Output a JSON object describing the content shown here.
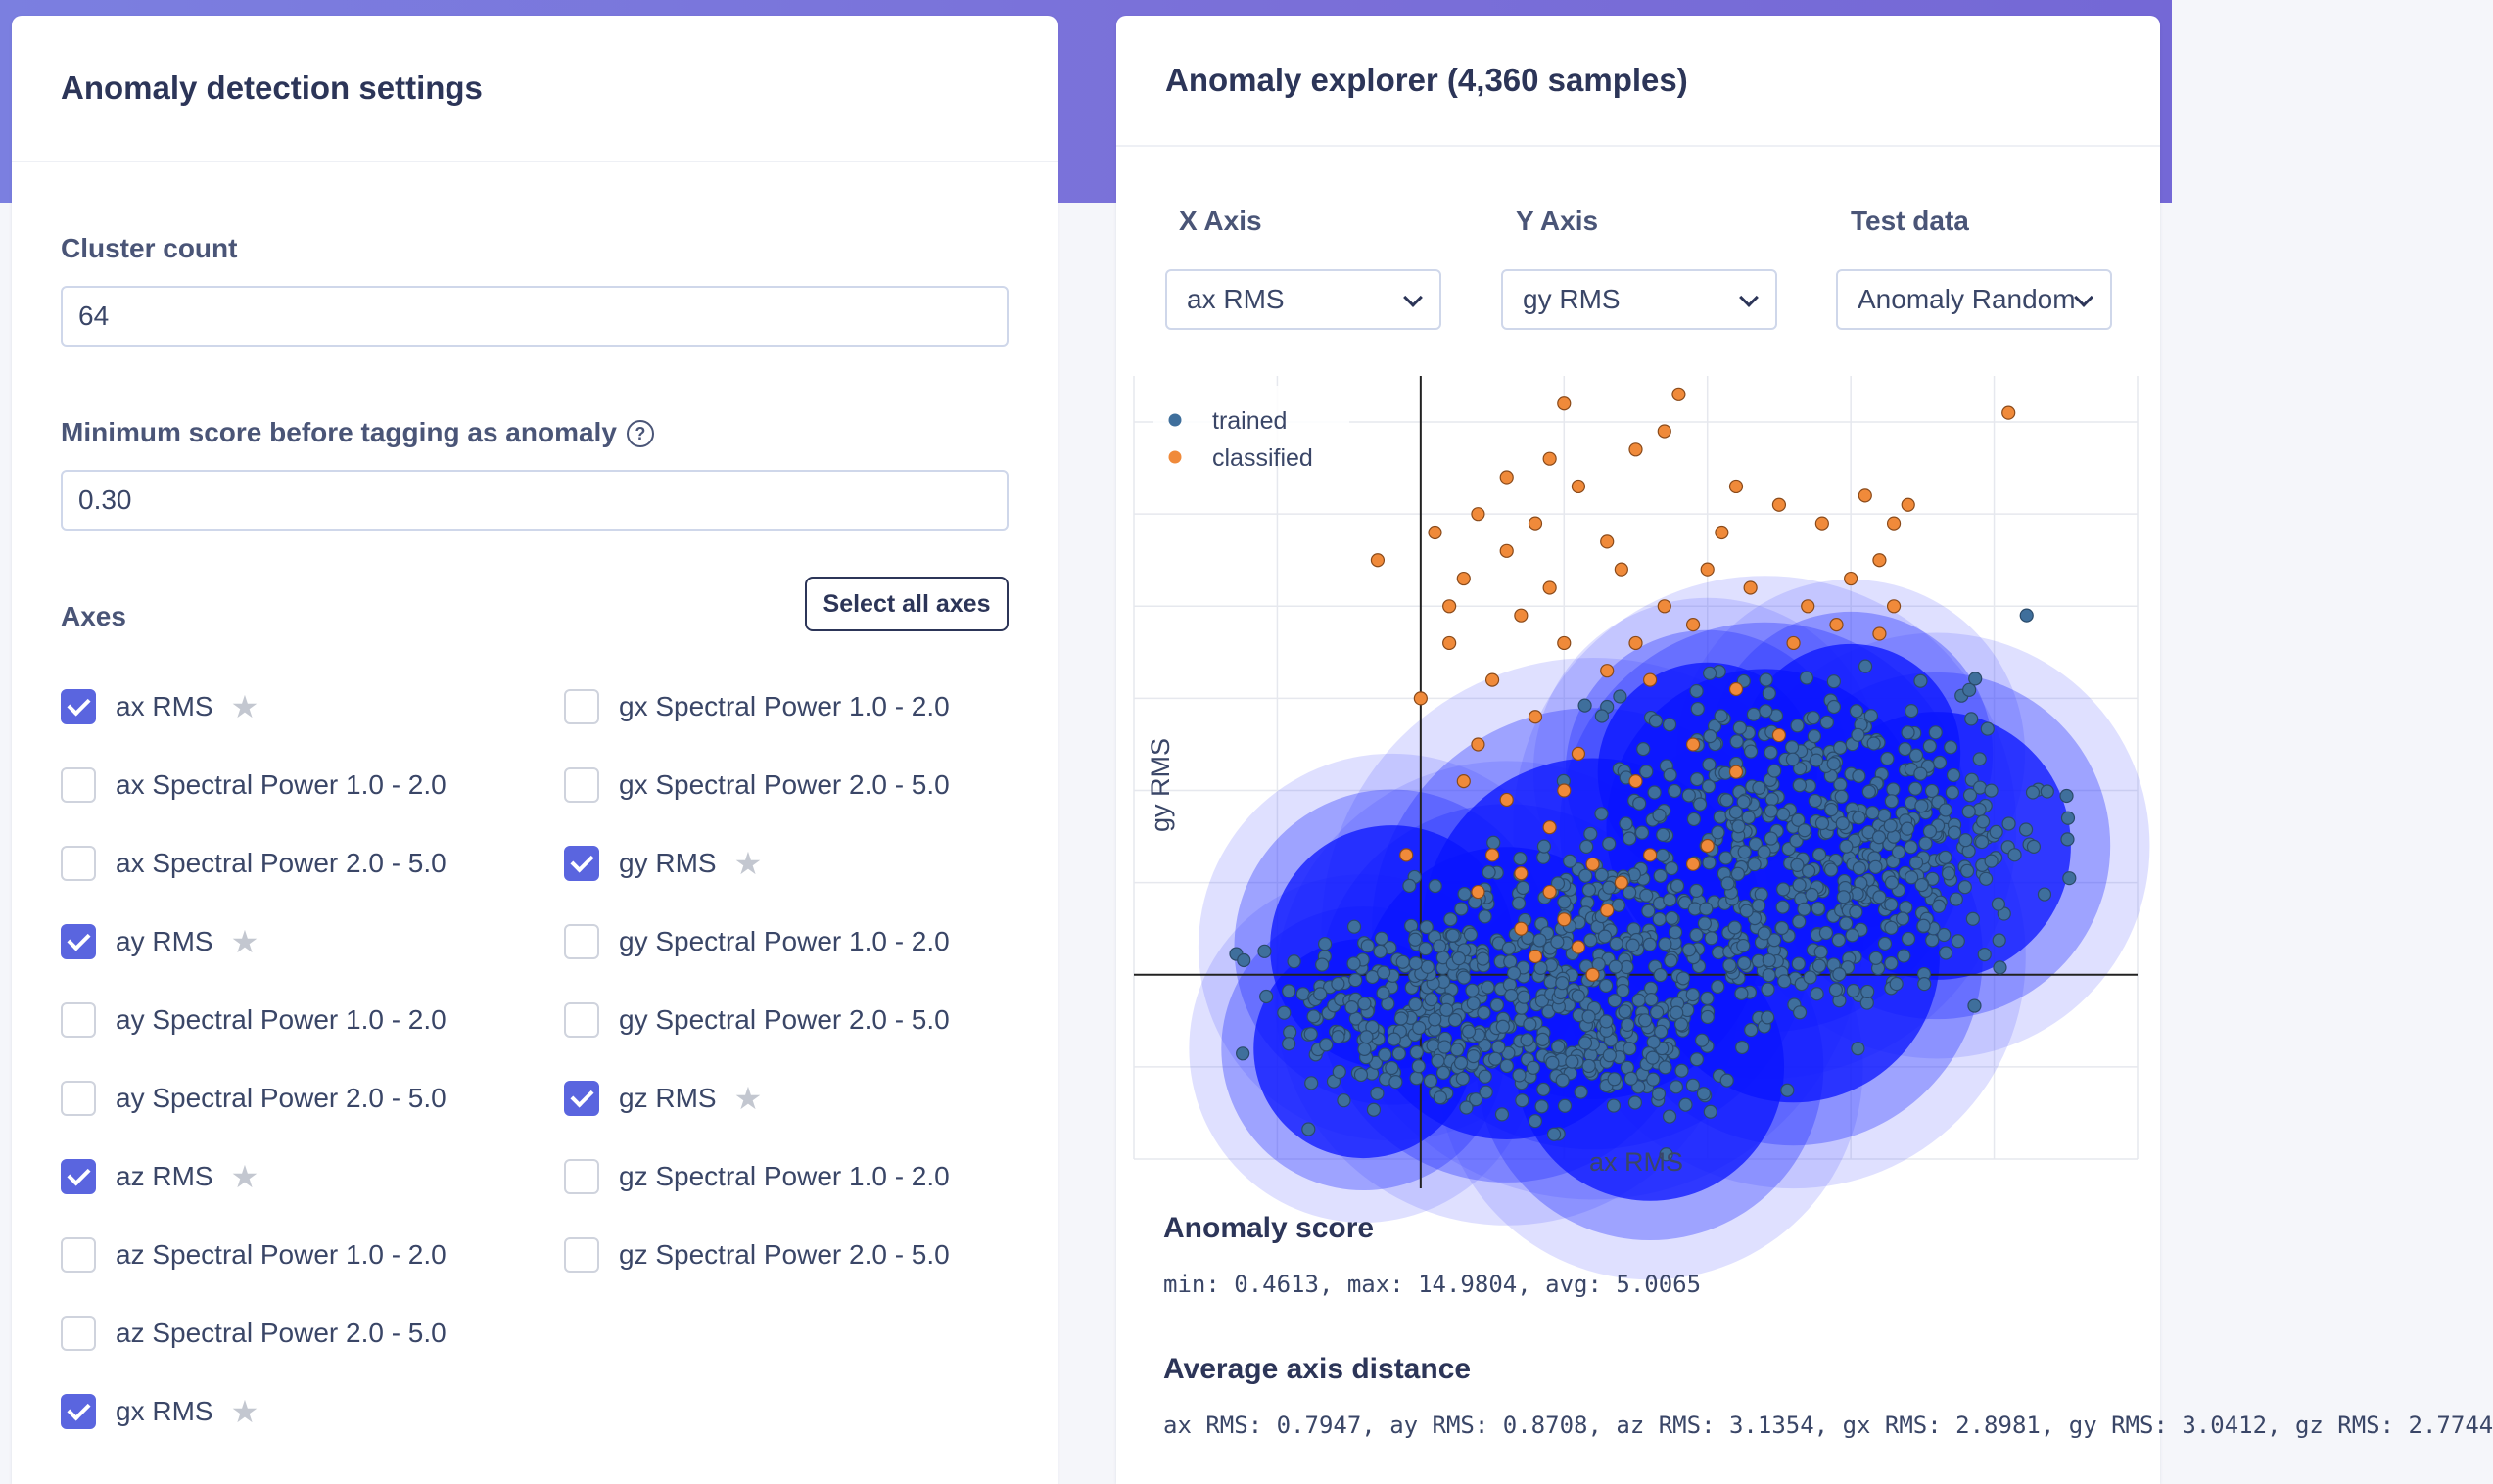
{
  "settings": {
    "title": "Anomaly detection settings",
    "cluster_count_label": "Cluster count",
    "cluster_count_value": "64",
    "min_score_label": "Minimum score before tagging as anomaly",
    "min_score_value": "0.30",
    "axes_label": "Axes",
    "select_all_label": "Select all axes",
    "axes_left": [
      {
        "label": "ax RMS",
        "checked": true,
        "starred": true
      },
      {
        "label": "ax Spectral Power 1.0 - 2.0",
        "checked": false,
        "starred": false
      },
      {
        "label": "ax Spectral Power 2.0 - 5.0",
        "checked": false,
        "starred": false
      },
      {
        "label": "ay RMS",
        "checked": true,
        "starred": true
      },
      {
        "label": "ay Spectral Power 1.0 - 2.0",
        "checked": false,
        "starred": false
      },
      {
        "label": "ay Spectral Power 2.0 - 5.0",
        "checked": false,
        "starred": false
      },
      {
        "label": "az RMS",
        "checked": true,
        "starred": true
      },
      {
        "label": "az Spectral Power 1.0 - 2.0",
        "checked": false,
        "starred": false
      },
      {
        "label": "az Spectral Power 2.0 - 5.0",
        "checked": false,
        "starred": false
      },
      {
        "label": "gx RMS",
        "checked": true,
        "starred": true
      }
    ],
    "axes_right": [
      {
        "label": "gx Spectral Power 1.0 - 2.0",
        "checked": false,
        "starred": false
      },
      {
        "label": "gx Spectral Power 2.0 - 5.0",
        "checked": false,
        "starred": false
      },
      {
        "label": "gy RMS",
        "checked": true,
        "starred": true
      },
      {
        "label": "gy Spectral Power 1.0 - 2.0",
        "checked": false,
        "starred": false
      },
      {
        "label": "gy Spectral Power 2.0 - 5.0",
        "checked": false,
        "starred": false
      },
      {
        "label": "gz RMS",
        "checked": true,
        "starred": true
      },
      {
        "label": "gz Spectral Power 1.0 - 2.0",
        "checked": false,
        "starred": false
      },
      {
        "label": "gz Spectral Power 2.0 - 5.0",
        "checked": false,
        "starred": false
      }
    ]
  },
  "explorer": {
    "title": "Anomaly explorer (4,360 samples)",
    "x_axis_label": "X Axis",
    "x_axis_value": "ax RMS",
    "y_axis_label": "Y Axis",
    "y_axis_value": "gy RMS",
    "test_data_label": "Test data",
    "test_data_value": "Anomaly Random",
    "anomaly_score_title": "Anomaly score",
    "anomaly_score_text": "min: 0.4613, max: 14.9804, avg: 5.0065",
    "avg_axis_distance_title": "Average axis distance",
    "avg_axis_distance_text": "ax RMS: 0.7947, ay RMS: 0.8708, az RMS: 3.1354, gx RMS: 2.8981, gy RMS: 3.0412, gz RMS: 2.7744"
  },
  "chart_data": {
    "type": "scatter",
    "xlabel": "ax RMS",
    "ylabel": "gy RMS",
    "legend": [
      {
        "name": "trained",
        "color": "#3f6f9c"
      },
      {
        "name": "classified",
        "color": "#f08a3a"
      }
    ],
    "legend_placement": "top-left",
    "grid": true,
    "xlim": [
      -2,
      5
    ],
    "ylim": [
      -2,
      6.5
    ],
    "clusters": [
      {
        "x": 2.4,
        "y": 1.6,
        "r": 1.3
      },
      {
        "x": 3.6,
        "y": 1.4,
        "r": 1.1
      },
      {
        "x": 2.0,
        "y": 2.2,
        "r": 0.9
      },
      {
        "x": 1.2,
        "y": 0.5,
        "r": 1.4
      },
      {
        "x": 0.6,
        "y": -0.2,
        "r": 1.2
      },
      {
        "x": -0.2,
        "y": 0.3,
        "r": 1.0
      },
      {
        "x": 1.6,
        "y": -1.0,
        "r": 1.1
      },
      {
        "x": 2.6,
        "y": 0.2,
        "r": 1.2
      },
      {
        "x": -0.4,
        "y": -0.8,
        "r": 0.9
      },
      {
        "x": 3.0,
        "y": 2.4,
        "r": 0.9
      }
    ],
    "series": [
      {
        "name": "trained",
        "color": "#3f6f9c",
        "groups": [
          {
            "cx": 0.0,
            "cy": -0.4,
            "sx": 0.5,
            "sy": 0.55,
            "n": 260
          },
          {
            "cx": 1.3,
            "cy": -0.8,
            "sx": 0.45,
            "sy": 0.4,
            "n": 170
          },
          {
            "cx": 2.3,
            "cy": 1.6,
            "sx": 0.55,
            "sy": 0.8,
            "n": 260
          },
          {
            "cx": 3.4,
            "cy": 1.5,
            "sx": 0.5,
            "sy": 0.7,
            "n": 210
          },
          {
            "cx": 1.1,
            "cy": 0.4,
            "sx": 0.5,
            "sy": 0.5,
            "n": 150
          },
          {
            "cx": 2.7,
            "cy": 0.4,
            "sx": 0.5,
            "sy": 0.45,
            "n": 110
          }
        ]
      },
      {
        "name": "classified",
        "color": "#f08a3a",
        "points": [
          [
            1.0,
            6.2
          ],
          [
            1.8,
            6.3
          ],
          [
            4.1,
            6.1
          ],
          [
            1.7,
            5.9
          ],
          [
            1.5,
            5.7
          ],
          [
            0.9,
            5.6
          ],
          [
            1.1,
            5.3
          ],
          [
            0.4,
            5.0
          ],
          [
            0.8,
            4.9
          ],
          [
            1.3,
            4.7
          ],
          [
            2.2,
            5.3
          ],
          [
            2.5,
            5.1
          ],
          [
            2.8,
            4.9
          ],
          [
            3.1,
            5.2
          ],
          [
            3.3,
            4.9
          ],
          [
            3.2,
            4.5
          ],
          [
            3.0,
            4.3
          ],
          [
            3.3,
            4.0
          ],
          [
            2.9,
            3.8
          ],
          [
            2.6,
            3.6
          ],
          [
            2.3,
            4.2
          ],
          [
            2.0,
            4.4
          ],
          [
            1.7,
            4.0
          ],
          [
            1.5,
            3.6
          ],
          [
            1.3,
            3.3
          ],
          [
            1.0,
            3.6
          ],
          [
            0.7,
            3.9
          ],
          [
            0.5,
            3.2
          ],
          [
            0.2,
            3.6
          ],
          [
            -0.3,
            4.5
          ],
          [
            0.3,
            4.3
          ],
          [
            0.6,
            4.6
          ],
          [
            0.0,
            3.0
          ],
          [
            0.8,
            2.8
          ],
          [
            1.6,
            3.2
          ],
          [
            2.2,
            3.1
          ],
          [
            2.5,
            2.6
          ],
          [
            1.9,
            2.5
          ],
          [
            1.1,
            2.4
          ],
          [
            0.3,
            2.1
          ],
          [
            -0.1,
            1.3
          ],
          [
            0.6,
            1.9
          ],
          [
            0.9,
            1.6
          ],
          [
            1.2,
            1.2
          ],
          [
            1.4,
            1.0
          ],
          [
            1.6,
            1.3
          ],
          [
            1.9,
            1.2
          ],
          [
            2.0,
            1.4
          ],
          [
            0.7,
            1.1
          ],
          [
            0.9,
            0.9
          ],
          [
            1.0,
            0.6
          ],
          [
            1.1,
            0.3
          ],
          [
            0.8,
            0.2
          ],
          [
            1.3,
            0.7
          ],
          [
            0.7,
            0.5
          ],
          [
            1.2,
            0.0
          ],
          [
            0.5,
            1.3
          ],
          [
            0.4,
            0.9
          ],
          [
            0.2,
            4.0
          ],
          [
            3.4,
            5.1
          ],
          [
            2.7,
            4.0
          ],
          [
            1.4,
            4.4
          ],
          [
            0.6,
            5.4
          ],
          [
            1.9,
            3.8
          ],
          [
            0.9,
            4.2
          ],
          [
            2.1,
            4.8
          ],
          [
            3.2,
            3.7
          ],
          [
            0.1,
            4.8
          ],
          [
            1.0,
            2.0
          ],
          [
            1.5,
            2.1
          ],
          [
            0.4,
            2.5
          ],
          [
            2.2,
            2.2
          ]
        ]
      }
    ]
  }
}
